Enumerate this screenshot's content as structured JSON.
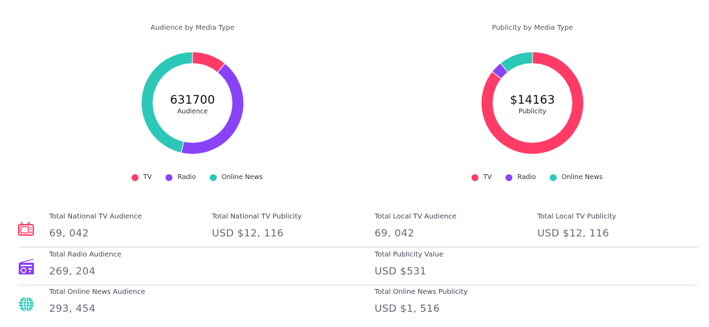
{
  "colors": {
    "tv": "#ff3b66",
    "radio": "#8a42f8",
    "online": "#2cc8b7"
  },
  "chart_data": [
    {
      "type": "pie",
      "title": "Audience by Media Type",
      "center_value": "631700",
      "center_label": "Audience",
      "categories": [
        "TV",
        "Radio",
        "Online News"
      ],
      "values": [
        69042,
        269204,
        293454
      ]
    },
    {
      "type": "pie",
      "title": "Publicity by Media Type",
      "center_value": "$14163",
      "center_label": "Publicity",
      "categories": [
        "TV",
        "Radio",
        "Online News"
      ],
      "values": [
        12116,
        531,
        1516
      ]
    }
  ],
  "stats": [
    {
      "icon": "tv-icon",
      "items": [
        {
          "label": "Total National TV Audience",
          "value": "69, 042"
        },
        {
          "label": "Total National TV Publicity",
          "value": "USD $12, 116"
        },
        {
          "label": "Total Local TV Audience",
          "value": "69, 042"
        },
        {
          "label": "Total Local TV Publicity",
          "value": "USD $12, 116"
        }
      ]
    },
    {
      "icon": "radio-icon",
      "items": [
        {
          "label": "Total Radio Audience",
          "value": "269, 204"
        },
        {
          "label": "Total Publicity Value",
          "value": "USD $531"
        }
      ]
    },
    {
      "icon": "globe-icon",
      "items": [
        {
          "label": "Total Online News Audience",
          "value": "293, 454"
        },
        {
          "label": "Total Online News Publicity",
          "value": "USD $1, 516"
        }
      ]
    }
  ]
}
